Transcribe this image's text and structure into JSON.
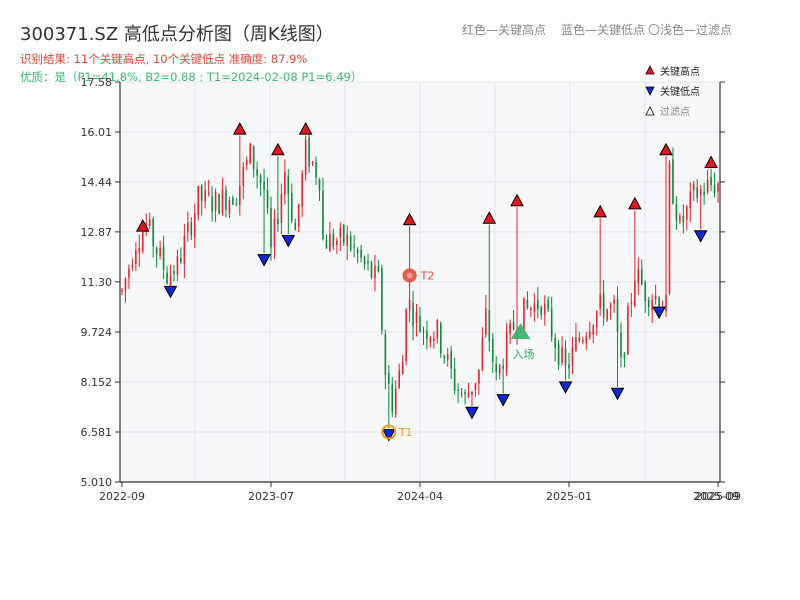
{
  "header": {
    "title": "300371.SZ 高低点分析图（周K线图）",
    "result_line": "识别结果: 11个关键高点, 10个关键低点  准确度: 87.9%",
    "quality_line": "优质：是（P1=41.8%, B2=0.88 ; T1=2024-02-08 P1=6.49）"
  },
  "top_legend": {
    "red": "红色—关键高点",
    "blue": "蓝色—关键低点",
    "light": "〇浅色—过滤点"
  },
  "colors": {
    "up": "#e8222e",
    "down": "#0a8a3a",
    "high_marker": "#e8141b",
    "low_marker": "#1024d8",
    "t1": "#f39c12",
    "t2": "#e74c3c",
    "entry": "#27ae60",
    "plot_bg": "#f7f8fa",
    "grid": "#e3e5ea"
  },
  "chart_data": {
    "type": "candlestick",
    "title": "300371.SZ 高低点分析图（周K线图）",
    "y_ticks": [
      "5.010",
      "6.581",
      "8.152",
      "9.724",
      "11.30",
      "12.87",
      "14.44",
      "16.01",
      "17.58"
    ],
    "ylim": [
      5.01,
      17.58
    ],
    "x_ticks": [
      {
        "label": "2022-09",
        "index": 0
      },
      {
        "label": "2023-07",
        "index": 43
      },
      {
        "label": "2024-04",
        "index": 86
      },
      {
        "label": "2025-01",
        "index": 129
      },
      {
        "label": "2025-09",
        "index": 172
      }
    ],
    "x_tick_overlap_label": "2025-09",
    "n_bars": 173,
    "anchors": [
      [
        0,
        11.0
      ],
      [
        4,
        12.6
      ],
      [
        7,
        13.1
      ],
      [
        13,
        11.5
      ],
      [
        16,
        11.8
      ],
      [
        22,
        13.9
      ],
      [
        27,
        13.8
      ],
      [
        33,
        14.1
      ],
      [
        37,
        15.3
      ],
      [
        41,
        14.2
      ],
      [
        43,
        12.2
      ],
      [
        47,
        14.8
      ],
      [
        50,
        12.9
      ],
      [
        53,
        15.4
      ],
      [
        57,
        14.6
      ],
      [
        58,
        12.6
      ],
      [
        65,
        12.6
      ],
      [
        70,
        11.8
      ],
      [
        74,
        11.3
      ],
      [
        76,
        8.5
      ],
      [
        78,
        7.5
      ],
      [
        81,
        8.8
      ],
      [
        82,
        10.8
      ],
      [
        86,
        9.9
      ],
      [
        91,
        9.7
      ],
      [
        96,
        8.1
      ],
      [
        99,
        7.6
      ],
      [
        103,
        8.5
      ],
      [
        105,
        10.2
      ],
      [
        108,
        8.2
      ],
      [
        111,
        9.3
      ],
      [
        114,
        10.2
      ],
      [
        118,
        10.5
      ],
      [
        121,
        10.7
      ],
      [
        128,
        8.5
      ],
      [
        131,
        9.3
      ],
      [
        135,
        10.1
      ],
      [
        138,
        10.5
      ],
      [
        142,
        10.4
      ],
      [
        144,
        8.6
      ],
      [
        148,
        11.6
      ],
      [
        151,
        11.0
      ],
      [
        155,
        10.8
      ],
      [
        157,
        10.5
      ],
      [
        158,
        14.7
      ],
      [
        161,
        13.0
      ],
      [
        165,
        14.0
      ],
      [
        169,
        14.3
      ],
      [
        172,
        14.4
      ]
    ],
    "key_highs": [
      {
        "index": 6,
        "price": 13.05
      },
      {
        "index": 34,
        "price": 16.1
      },
      {
        "index": 45,
        "price": 15.45
      },
      {
        "index": 53,
        "price": 16.1
      },
      {
        "index": 83,
        "price": 13.25
      },
      {
        "index": 106,
        "price": 13.3
      },
      {
        "index": 114,
        "price": 13.85
      },
      {
        "index": 138,
        "price": 13.5
      },
      {
        "index": 148,
        "price": 13.75
      },
      {
        "index": 157,
        "price": 15.45
      },
      {
        "index": 170,
        "price": 15.05
      }
    ],
    "key_lows": [
      {
        "index": 14,
        "price": 11.0
      },
      {
        "index": 41,
        "price": 12.0
      },
      {
        "index": 48,
        "price": 12.6
      },
      {
        "index": 77,
        "price": 6.5
      },
      {
        "index": 101,
        "price": 7.2
      },
      {
        "index": 110,
        "price": 7.6
      },
      {
        "index": 128,
        "price": 8.0
      },
      {
        "index": 143,
        "price": 7.8
      },
      {
        "index": 155,
        "price": 10.35
      },
      {
        "index": 167,
        "price": 12.75
      }
    ],
    "annotations": [
      {
        "type": "T1",
        "label": "T1",
        "index": 77,
        "price": 6.58
      },
      {
        "type": "T2",
        "label": "T2",
        "index": 83,
        "price": 11.5
      },
      {
        "type": "entry",
        "label": "入场",
        "index": 115,
        "price": 9.72
      }
    ],
    "legend": {
      "position": "top-right",
      "entries": [
        "关键高点",
        "关键低点",
        "过滤点"
      ]
    },
    "grid": true
  }
}
